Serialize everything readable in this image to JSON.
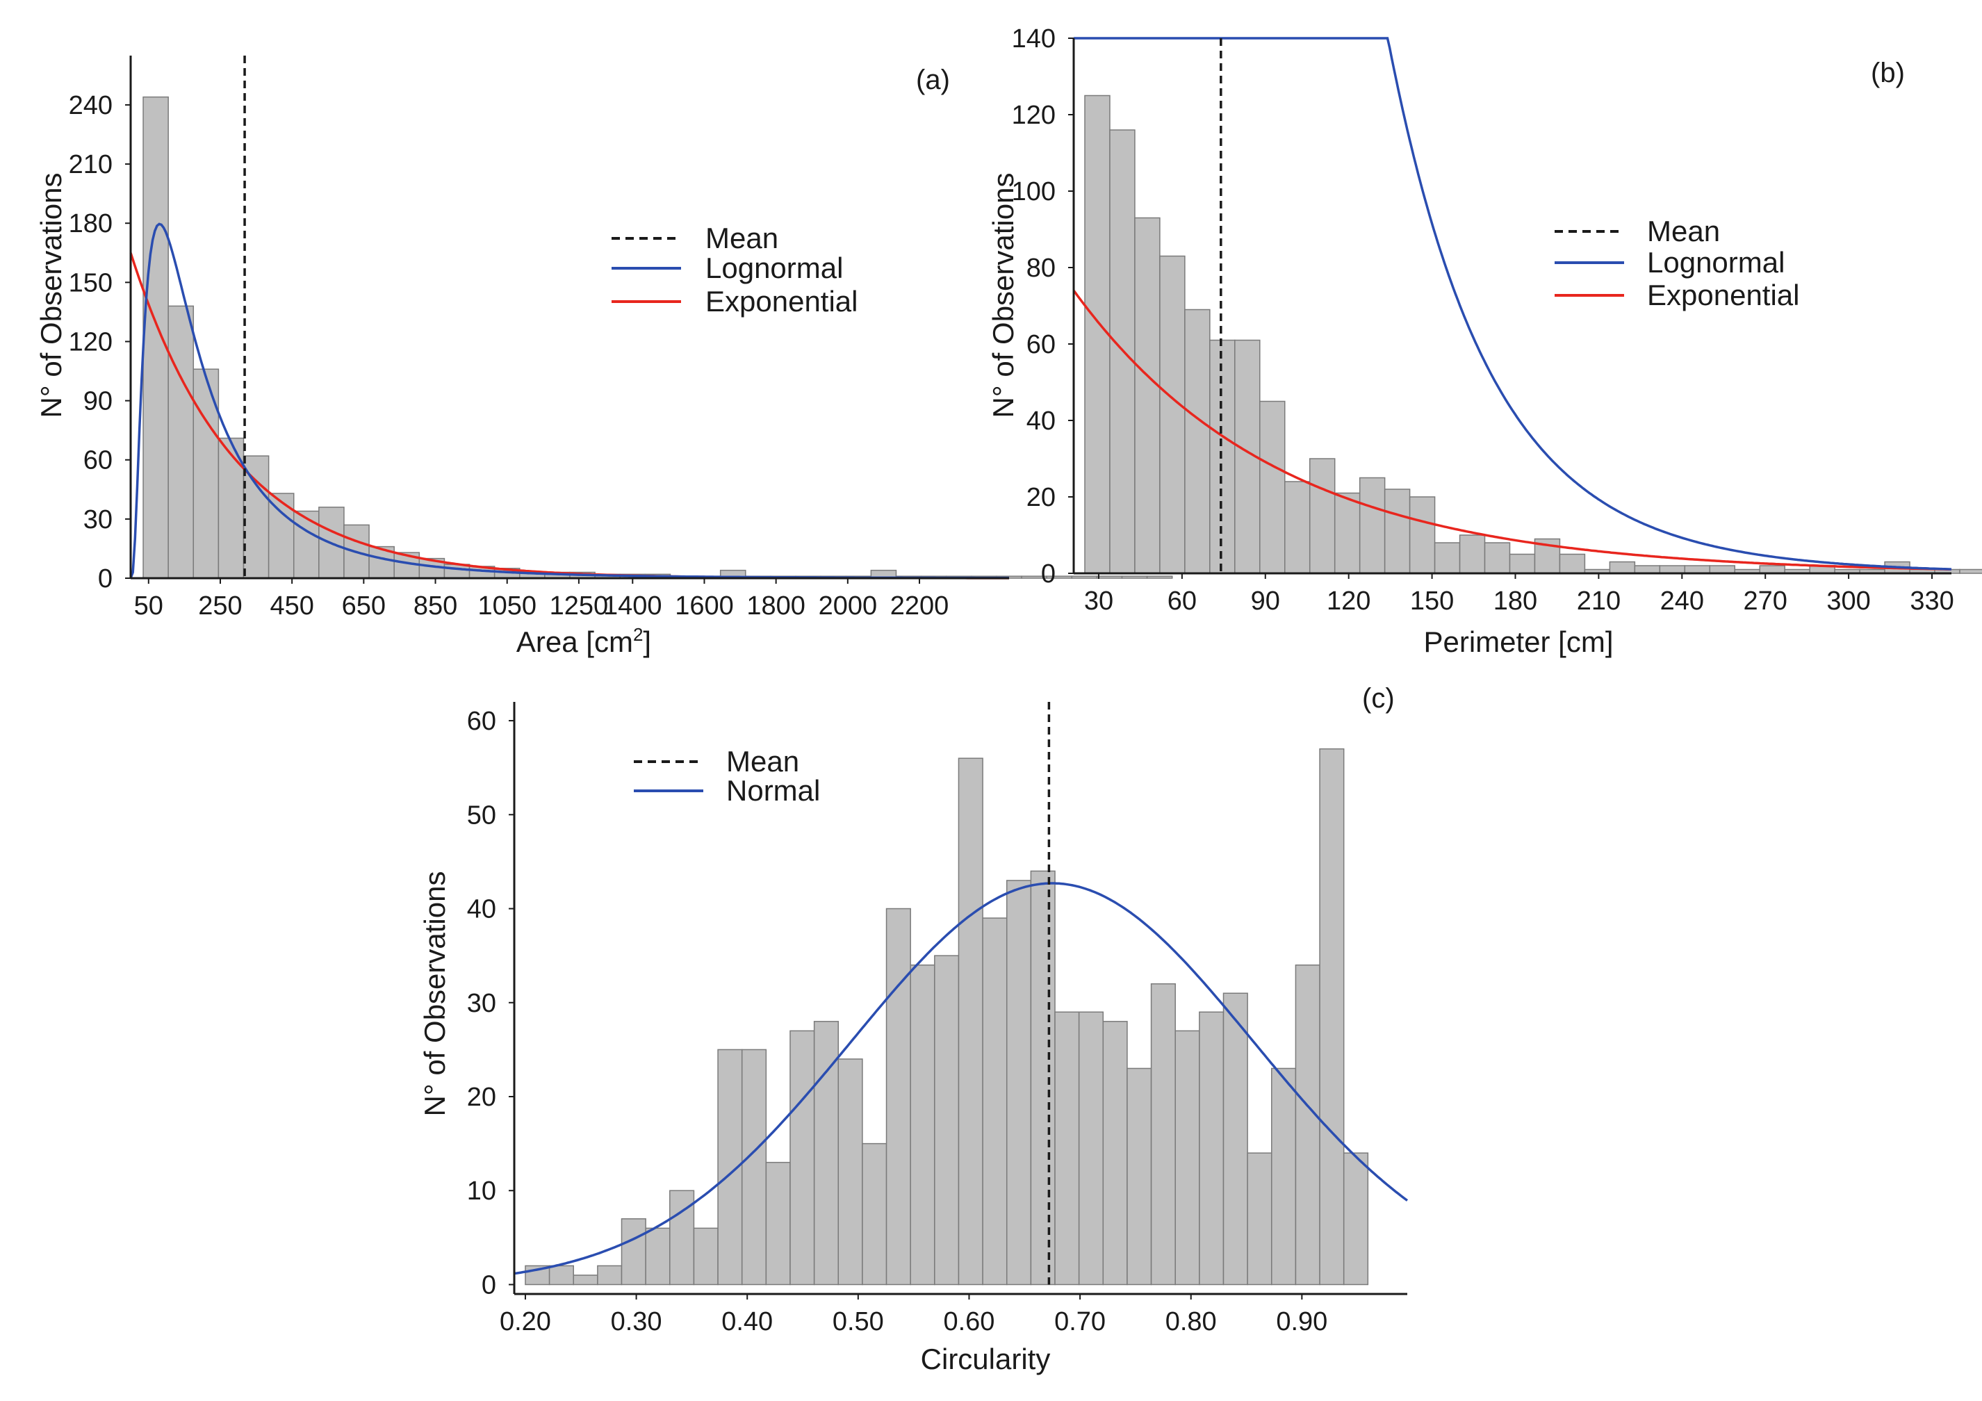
{
  "colors": {
    "bar_fill": "#c0c0c0",
    "bar_stroke": "#7a7a7a",
    "axis": "#1a1a1a",
    "lognormal": "#2a4db0",
    "normal": "#2a4db0",
    "exponential": "#e8261e",
    "mean": "#1a1a1a"
  },
  "chart_data": [
    {
      "type": "bar",
      "panel_label": "(a)",
      "xlabel": "Area [cm",
      "xlabel_sup": "2",
      "xlabel_end": "]",
      "ylabel": "N° of Observations",
      "xlim": [
        0,
        2450
      ],
      "ylim": [
        0,
        265
      ],
      "bin_start": 35,
      "bin_width": 70,
      "values": [
        244,
        138,
        106,
        71,
        62,
        43,
        34,
        36,
        27,
        16,
        13,
        10,
        7,
        6,
        5,
        3,
        3,
        3,
        2,
        2,
        2,
        1,
        1,
        4,
        1,
        1,
        1,
        1,
        1,
        4,
        1,
        1,
        1,
        1,
        1,
        1,
        1,
        1,
        1,
        1,
        1
      ],
      "xticks": [
        50,
        250,
        450,
        650,
        850,
        1050,
        1250,
        1400,
        1600,
        1800,
        2000,
        2200
      ],
      "xtick_labels": [
        "50",
        "250",
        "450",
        "650",
        "850",
        "1050",
        "1250",
        "1400",
        "1600",
        "1800",
        "2000",
        "2200"
      ],
      "yticks": [
        0,
        30,
        60,
        90,
        120,
        150,
        180,
        210,
        240
      ],
      "ytick_labels": [
        "0",
        "30",
        "60",
        "90",
        "120",
        "150",
        "180",
        "210",
        "240"
      ],
      "mean": 318,
      "legend": [
        {
          "key": "mean",
          "label": "Mean",
          "style": "dashed"
        },
        {
          "key": "lognormal",
          "label": "Lognormal",
          "style": "solid"
        },
        {
          "key": "exponential",
          "label": "Exponential",
          "style": "solid"
        }
      ],
      "lognormal": {
        "n": 700,
        "mu": 5.2,
        "sigma": 0.9
      },
      "exponential": {
        "amplitude": 165,
        "rate": 0.00345
      }
    },
    {
      "type": "bar",
      "panel_label": "(b)",
      "xlabel": "Perimeter [cm]",
      "ylabel": "N° of Observations",
      "xlim": [
        21,
        337
      ],
      "ylim": [
        0,
        140
      ],
      "bin_start": 25,
      "bin_width": 9,
      "values": [
        125,
        116,
        93,
        83,
        69,
        61,
        61,
        45,
        24,
        30,
        21,
        25,
        22,
        20,
        8,
        10,
        8,
        5,
        9,
        5,
        1,
        3,
        2,
        2,
        2,
        2,
        1,
        2,
        1,
        2,
        1,
        1,
        3,
        1,
        1,
        1
      ],
      "xticks": [
        30,
        60,
        90,
        120,
        150,
        180,
        210,
        240,
        270,
        300,
        330
      ],
      "xtick_labels": [
        "30",
        "60",
        "90",
        "120",
        "150",
        "180",
        "210",
        "240",
        "270",
        "300",
        "330"
      ],
      "yticks": [
        0,
        20,
        40,
        60,
        80,
        100,
        120,
        140
      ],
      "ytick_labels": [
        "0",
        "20",
        "40",
        "60",
        "80",
        "100",
        "120",
        "140"
      ],
      "mean": 74,
      "legend": [
        {
          "key": "mean",
          "label": "Mean",
          "style": "dashed"
        },
        {
          "key": "lognormal",
          "label": "Lognormal",
          "style": "solid"
        },
        {
          "key": "exponential",
          "label": "Exponential",
          "style": "solid"
        }
      ],
      "lognormal": {
        "n": 6700,
        "mu": 4.2,
        "sigma": 0.52
      },
      "exponential": {
        "amplitude": 74,
        "rate": 0.0135
      }
    },
    {
      "type": "bar",
      "panel_label": "(c)",
      "xlabel": "Circularity",
      "ylabel": "N° of Observations",
      "xlim": [
        0.19,
        0.995
      ],
      "ylim": [
        -1,
        62
      ],
      "bin_start": 0.2,
      "bin_width": 0.0217,
      "values": [
        2,
        2,
        1,
        2,
        7,
        6,
        10,
        6,
        25,
        25,
        13,
        27,
        28,
        24,
        15,
        40,
        34,
        35,
        56,
        39,
        43,
        44,
        29,
        29,
        28,
        23,
        32,
        27,
        29,
        31,
        14,
        23,
        34,
        57,
        14
      ],
      "xticks": [
        0.2,
        0.3,
        0.4,
        0.5,
        0.6,
        0.7,
        0.8,
        0.9
      ],
      "xtick_labels": [
        "0.20",
        "0.30",
        "0.40",
        "0.50",
        "0.60",
        "0.70",
        "0.80",
        "0.90"
      ],
      "yticks": [
        0,
        10,
        20,
        30,
        40,
        50,
        60
      ],
      "ytick_labels": [
        "0",
        "10",
        "20",
        "30",
        "40",
        "50",
        "60"
      ],
      "mean": 0.672,
      "legend": [
        {
          "key": "mean",
          "label": "Mean",
          "style": "dashed"
        },
        {
          "key": "normal",
          "label": "Normal",
          "style": "solid"
        }
      ],
      "normal": {
        "amplitude": 42.7,
        "mu": 0.675,
        "sigma": 0.181
      }
    }
  ]
}
